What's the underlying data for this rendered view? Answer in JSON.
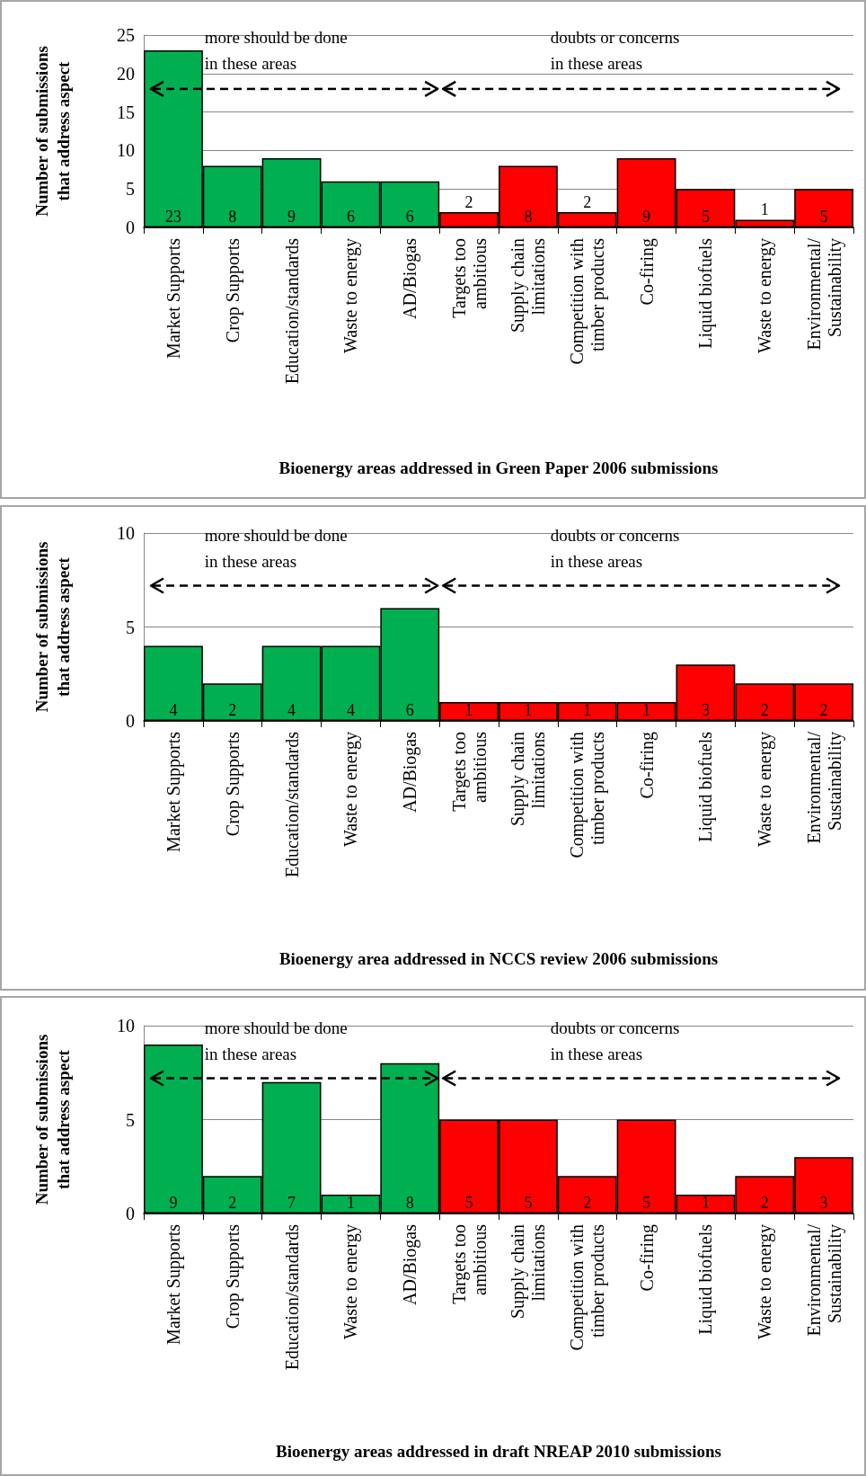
{
  "chart_data": [
    {
      "type": "bar",
      "xlabel": "Bioenergy areas addressed in Green Paper 2006 submissions",
      "ylabel": "Number of submissions that address aspect",
      "categories": [
        "Market Supports",
        "Crop Supports",
        "Education/standards",
        "Waste to energy",
        "AD/Biogas",
        "Targets too\nambitious",
        "Supply chain\nlimitations",
        "Competition with\ntimber products",
        "Co-firing",
        "Liquid biofuels",
        "Waste to energy",
        "Environmental/\nSustainability"
      ],
      "values": [
        23,
        8,
        9,
        6,
        6,
        2,
        8,
        2,
        9,
        5,
        1,
        5
      ],
      "colors": [
        "#00b050",
        "#00b050",
        "#00b050",
        "#00b050",
        "#00b050",
        "#ff0000",
        "#ff0000",
        "#ff0000",
        "#ff0000",
        "#ff0000",
        "#ff0000",
        "#ff0000"
      ],
      "ylim": [
        0,
        25
      ],
      "yticks": [
        0,
        5,
        10,
        15,
        20,
        25
      ],
      "grid": "y",
      "data_labels": true,
      "annotations": [
        "more should be done\nin these areas",
        "doubts or concerns\nin these areas"
      ]
    },
    {
      "type": "bar",
      "xlabel": "Bioenergy area addressed in NCCS review 2006 submissions",
      "ylabel": "Number of submissions that address aspect",
      "categories": [
        "Market Supports",
        "Crop Supports",
        "Education/standards",
        "Waste to energy",
        "AD/Biogas",
        "Targets too\nambitious",
        "Supply chain\nlimitations",
        "Competition with\ntimber products",
        "Co-firing",
        "Liquid biofuels",
        "Waste to energy",
        "Environmental/\nSustainability"
      ],
      "values": [
        4,
        2,
        4,
        4,
        6,
        1,
        1,
        1,
        1,
        3,
        2,
        2
      ],
      "colors": [
        "#00b050",
        "#00b050",
        "#00b050",
        "#00b050",
        "#00b050",
        "#ff0000",
        "#ff0000",
        "#ff0000",
        "#ff0000",
        "#ff0000",
        "#ff0000",
        "#ff0000"
      ],
      "ylim": [
        0,
        10
      ],
      "yticks": [
        0,
        5,
        10
      ],
      "grid": "y",
      "data_labels": true,
      "annotations": [
        "more should be done\nin these areas",
        "doubts or concerns\nin these areas"
      ]
    },
    {
      "type": "bar",
      "xlabel": "Bioenergy areas addressed in draft NREAP 2010 submissions",
      "ylabel": "Number of submissions that address aspect",
      "categories": [
        "Market Supports",
        "Crop Supports",
        "Education/standards",
        "Waste to energy",
        "AD/Biogas",
        "Targets too\nambitious",
        "Supply chain\nlimitations",
        "Competition with\ntimber products",
        "Co-firing",
        "Liquid biofuels",
        "Waste to energy",
        "Environmental/\nSustainability"
      ],
      "values": [
        9,
        2,
        7,
        1,
        8,
        5,
        5,
        2,
        5,
        1,
        2,
        3
      ],
      "colors": [
        "#00b050",
        "#00b050",
        "#00b050",
        "#00b050",
        "#00b050",
        "#ff0000",
        "#ff0000",
        "#ff0000",
        "#ff0000",
        "#ff0000",
        "#ff0000",
        "#ff0000"
      ],
      "ylim": [
        0,
        10
      ],
      "yticks": [
        0,
        5,
        10
      ],
      "grid": "y",
      "data_labels": true,
      "annotations": [
        "more should be done\nin these areas",
        "doubts or concerns\nin these areas"
      ]
    }
  ]
}
